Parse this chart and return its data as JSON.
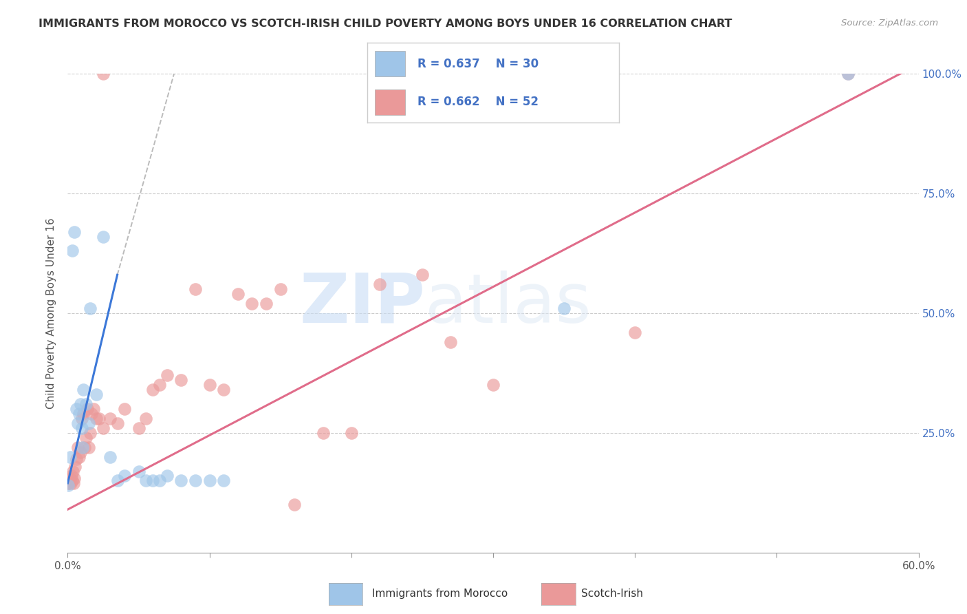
{
  "title": "IMMIGRANTS FROM MOROCCO VS SCOTCH-IRISH CHILD POVERTY AMONG BOYS UNDER 16 CORRELATION CHART",
  "source": "Source: ZipAtlas.com",
  "ylabel": "Child Poverty Among Boys Under 16",
  "xlabel_ticks": [
    "0.0%",
    "",
    "",
    "",
    "",
    "",
    "60.0%"
  ],
  "xlabel_vals": [
    0.0,
    10.0,
    20.0,
    30.0,
    40.0,
    50.0,
    60.0
  ],
  "yright_ticks": [
    "100.0%",
    "75.0%",
    "50.0%",
    "25.0%",
    ""
  ],
  "yright_vals": [
    100.0,
    75.0,
    50.0,
    25.0,
    0.0
  ],
  "watermark_zip": "ZIP",
  "watermark_atlas": "atlas",
  "legend_blue_r": "R = 0.637",
  "legend_blue_n": "N = 30",
  "legend_pink_r": "R = 0.662",
  "legend_pink_n": "N = 52",
  "blue_color": "#9fc5e8",
  "pink_color": "#ea9999",
  "blue_line_color": "#3c78d8",
  "pink_line_color": "#e06c8a",
  "xlim": [
    0,
    60
  ],
  "ylim": [
    0,
    100
  ],
  "blue_scatter": [
    [
      0.15,
      20.0
    ],
    [
      0.3,
      63.0
    ],
    [
      0.45,
      67.0
    ],
    [
      0.6,
      30.0
    ],
    [
      0.7,
      27.0
    ],
    [
      0.8,
      29.0
    ],
    [
      0.9,
      31.0
    ],
    [
      1.0,
      26.0
    ],
    [
      1.05,
      22.0
    ],
    [
      1.1,
      34.0
    ],
    [
      1.3,
      31.0
    ],
    [
      1.5,
      27.0
    ],
    [
      1.6,
      51.0
    ],
    [
      2.0,
      33.0
    ],
    [
      2.5,
      66.0
    ],
    [
      3.0,
      20.0
    ],
    [
      3.5,
      15.0
    ],
    [
      4.0,
      16.0
    ],
    [
      5.0,
      17.0
    ],
    [
      5.5,
      15.0
    ],
    [
      6.0,
      15.0
    ],
    [
      6.5,
      15.0
    ],
    [
      7.0,
      16.0
    ],
    [
      8.0,
      15.0
    ],
    [
      9.0,
      15.0
    ],
    [
      10.0,
      15.0
    ],
    [
      11.0,
      15.0
    ],
    [
      35.0,
      51.0
    ],
    [
      55.0,
      100.0
    ],
    [
      0.05,
      14.0
    ]
  ],
  "pink_scatter": [
    [
      0.05,
      14.5
    ],
    [
      0.1,
      14.5
    ],
    [
      0.15,
      15.5
    ],
    [
      0.2,
      14.5
    ],
    [
      0.25,
      16.0
    ],
    [
      0.3,
      15.0
    ],
    [
      0.35,
      17.0
    ],
    [
      0.4,
      14.5
    ],
    [
      0.45,
      15.5
    ],
    [
      0.5,
      18.0
    ],
    [
      0.6,
      19.5
    ],
    [
      0.7,
      22.0
    ],
    [
      0.8,
      20.0
    ],
    [
      0.9,
      21.0
    ],
    [
      1.0,
      28.0
    ],
    [
      1.1,
      29.0
    ],
    [
      1.2,
      22.0
    ],
    [
      1.3,
      24.0
    ],
    [
      1.4,
      30.0
    ],
    [
      1.5,
      22.0
    ],
    [
      1.6,
      25.0
    ],
    [
      1.7,
      29.0
    ],
    [
      1.8,
      30.0
    ],
    [
      2.0,
      28.0
    ],
    [
      2.2,
      28.0
    ],
    [
      2.5,
      26.0
    ],
    [
      3.0,
      28.0
    ],
    [
      3.5,
      27.0
    ],
    [
      4.0,
      30.0
    ],
    [
      5.0,
      26.0
    ],
    [
      5.5,
      28.0
    ],
    [
      6.0,
      34.0
    ],
    [
      6.5,
      35.0
    ],
    [
      7.0,
      37.0
    ],
    [
      8.0,
      36.0
    ],
    [
      9.0,
      55.0
    ],
    [
      10.0,
      35.0
    ],
    [
      11.0,
      34.0
    ],
    [
      12.0,
      54.0
    ],
    [
      13.0,
      52.0
    ],
    [
      14.0,
      52.0
    ],
    [
      15.0,
      55.0
    ],
    [
      16.0,
      10.0
    ],
    [
      18.0,
      25.0
    ],
    [
      20.0,
      25.0
    ],
    [
      22.0,
      56.0
    ],
    [
      25.0,
      58.0
    ],
    [
      27.0,
      44.0
    ],
    [
      30.0,
      35.0
    ],
    [
      2.5,
      100.0
    ],
    [
      55.0,
      100.0
    ],
    [
      40.0,
      46.0
    ]
  ],
  "blue_line_x1": 0.0,
  "blue_line_y1": 14.5,
  "blue_line_x2": 3.5,
  "blue_line_y2": 58.0,
  "blue_dash_x1": 3.5,
  "blue_dash_y1": 58.0,
  "blue_dash_x2": 7.5,
  "blue_dash_y2": 100.0,
  "pink_line_x1": 0.0,
  "pink_line_y1": 9.0,
  "pink_line_x2": 60.0,
  "pink_line_y2": 102.0
}
